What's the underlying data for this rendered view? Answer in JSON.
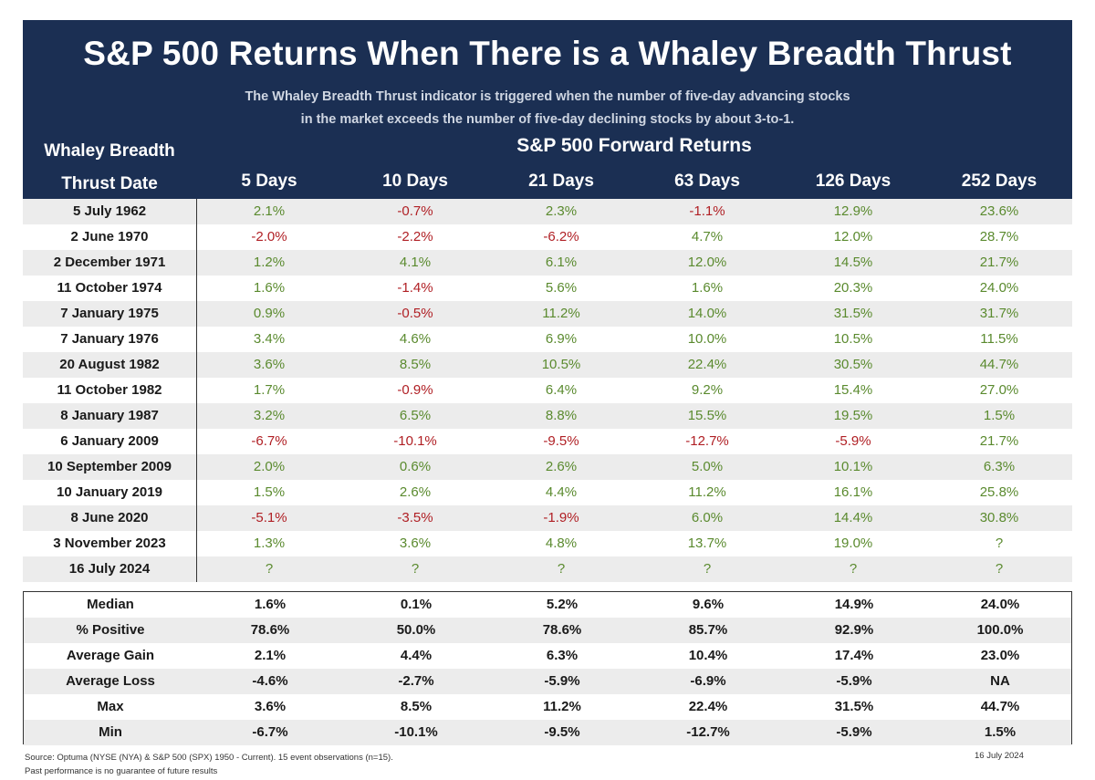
{
  "title": "S&P 500 Returns When There is a Whaley Breadth Thrust",
  "subtitle_line1": "The Whaley Breadth Thrust indicator is triggered when the number of five-day advancing stocks",
  "subtitle_line2": "in the market exceeds the number of five-day declining stocks by about 3-to-1.",
  "date_header_line1": "Whaley Breadth",
  "date_header_line2": "Thrust Date",
  "forward_header": "S&P 500 Forward Returns",
  "columns": [
    "5 Days",
    "10 Days",
    "21 Days",
    "63 Days",
    "126 Days",
    "252 Days"
  ],
  "colors": {
    "header_bg": "#1b2f53",
    "positive": "#5a8a2e",
    "negative": "#b01f24",
    "alt_row": "#ececec"
  },
  "chart_data": {
    "type": "table",
    "columns": [
      "5 Days",
      "10 Days",
      "21 Days",
      "63 Days",
      "126 Days",
      "252 Days"
    ],
    "rows": [
      {
        "date": "5 July 1962",
        "values": [
          "2.1%",
          "-0.7%",
          "2.3%",
          "-1.1%",
          "12.9%",
          "23.6%"
        ]
      },
      {
        "date": "2 June 1970",
        "values": [
          "-2.0%",
          "-2.2%",
          "-6.2%",
          "4.7%",
          "12.0%",
          "28.7%"
        ]
      },
      {
        "date": "2 December 1971",
        "values": [
          "1.2%",
          "4.1%",
          "6.1%",
          "12.0%",
          "14.5%",
          "21.7%"
        ]
      },
      {
        "date": "11 October 1974",
        "values": [
          "1.6%",
          "-1.4%",
          "5.6%",
          "1.6%",
          "20.3%",
          "24.0%"
        ]
      },
      {
        "date": "7 January 1975",
        "values": [
          "0.9%",
          "-0.5%",
          "11.2%",
          "14.0%",
          "31.5%",
          "31.7%"
        ]
      },
      {
        "date": "7 January 1976",
        "values": [
          "3.4%",
          "4.6%",
          "6.9%",
          "10.0%",
          "10.5%",
          "11.5%"
        ]
      },
      {
        "date": "20 August 1982",
        "values": [
          "3.6%",
          "8.5%",
          "10.5%",
          "22.4%",
          "30.5%",
          "44.7%"
        ]
      },
      {
        "date": "11 October 1982",
        "values": [
          "1.7%",
          "-0.9%",
          "6.4%",
          "9.2%",
          "15.4%",
          "27.0%"
        ]
      },
      {
        "date": "8 January 1987",
        "values": [
          "3.2%",
          "6.5%",
          "8.8%",
          "15.5%",
          "19.5%",
          "1.5%"
        ]
      },
      {
        "date": "6 January 2009",
        "values": [
          "-6.7%",
          "-10.1%",
          "-9.5%",
          "-12.7%",
          "-5.9%",
          "21.7%"
        ]
      },
      {
        "date": "10 September 2009",
        "values": [
          "2.0%",
          "0.6%",
          "2.6%",
          "5.0%",
          "10.1%",
          "6.3%"
        ]
      },
      {
        "date": "10 January 2019",
        "values": [
          "1.5%",
          "2.6%",
          "4.4%",
          "11.2%",
          "16.1%",
          "25.8%"
        ]
      },
      {
        "date": "8 June 2020",
        "values": [
          "-5.1%",
          "-3.5%",
          "-1.9%",
          "6.0%",
          "14.4%",
          "30.8%"
        ]
      },
      {
        "date": "3 November 2023",
        "values": [
          "1.3%",
          "3.6%",
          "4.8%",
          "13.7%",
          "19.0%",
          "?"
        ]
      },
      {
        "date": "16 July 2024",
        "values": [
          "?",
          "?",
          "?",
          "?",
          "?",
          "?"
        ]
      }
    ],
    "stats": [
      {
        "label": "Median",
        "values": [
          "1.6%",
          "0.1%",
          "5.2%",
          "9.6%",
          "14.9%",
          "24.0%"
        ]
      },
      {
        "label": "% Positive",
        "values": [
          "78.6%",
          "50.0%",
          "78.6%",
          "85.7%",
          "92.9%",
          "100.0%"
        ]
      },
      {
        "label": "Average Gain",
        "values": [
          "2.1%",
          "4.4%",
          "6.3%",
          "10.4%",
          "17.4%",
          "23.0%"
        ]
      },
      {
        "label": "Average Loss",
        "values": [
          "-4.6%",
          "-2.7%",
          "-5.9%",
          "-6.9%",
          "-5.9%",
          "NA"
        ]
      },
      {
        "label": "Max",
        "values": [
          "3.6%",
          "8.5%",
          "11.2%",
          "22.4%",
          "31.5%",
          "44.7%"
        ]
      },
      {
        "label": "Min",
        "values": [
          "-6.7%",
          "-10.1%",
          "-9.5%",
          "-12.7%",
          "-5.9%",
          "1.5%"
        ]
      }
    ]
  },
  "source_line1": "Source: Optuma (NYSE (NYA) & S&P 500 (SPX) 1950 - Current). 15 event observations (n=15).",
  "source_line2": "Past performance is no guarantee of future results",
  "date_stamp": "16 July 2024"
}
